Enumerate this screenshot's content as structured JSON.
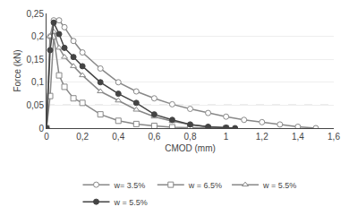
{
  "chart_data": {
    "type": "line",
    "xlabel": "CMOD (mm)",
    "ylabel": "Force (kN)",
    "xlim": [
      0,
      1.6
    ],
    "ylim": [
      0,
      0.25
    ],
    "xticks": [
      0,
      {
        "value": 0.2,
        "label": "0,2"
      },
      {
        "value": 0.4,
        "label": "0,4"
      },
      {
        "value": 0.6,
        "label": "0,6"
      },
      {
        "value": 0.8,
        "label": "0,8"
      },
      1,
      {
        "value": 1.2,
        "label": "1,2"
      },
      {
        "value": 1.4,
        "label": "1,4"
      },
      {
        "value": 1.6,
        "label": "1,6"
      }
    ],
    "yticks": [
      0,
      {
        "value": 0.05,
        "label": "0,05"
      },
      {
        "value": 0.1,
        "label": "0,1"
      },
      {
        "value": 0.15,
        "label": "0,15"
      },
      {
        "value": 0.2,
        "label": "0,2"
      },
      {
        "value": 0.25,
        "label": "0,25"
      }
    ],
    "hline": {
      "value": 0.05,
      "color": "#555555",
      "line_style": "dashed"
    },
    "grid": "y",
    "legend": "bottom",
    "series": [
      {
        "name": "w= 3.5%",
        "marker": "circle-open",
        "color": "#888888",
        "x": [
          0.0,
          0.02,
          0.04,
          0.07,
          0.1,
          0.15,
          0.2,
          0.3,
          0.4,
          0.5,
          0.6,
          0.7,
          0.8,
          0.9,
          1.0,
          1.1,
          1.2,
          1.3,
          1.4,
          1.5
        ],
        "values": [
          0.0,
          0.2,
          0.235,
          0.235,
          0.22,
          0.19,
          0.165,
          0.13,
          0.1,
          0.08,
          0.065,
          0.052,
          0.042,
          0.033,
          0.025,
          0.018,
          0.013,
          0.008,
          0.003,
          0.0
        ]
      },
      {
        "name": "w = 6.5%",
        "marker": "square-open",
        "color": "#888888",
        "x": [
          0.0,
          0.02,
          0.04,
          0.07,
          0.1,
          0.15,
          0.2,
          0.3,
          0.4,
          0.5,
          0.6,
          0.7,
          0.8,
          0.9,
          1.0
        ],
        "values": [
          0.0,
          0.07,
          0.2,
          0.115,
          0.09,
          0.065,
          0.055,
          0.03,
          0.016,
          0.009,
          0.005,
          0.002,
          0.001,
          0.0,
          0.0
        ]
      },
      {
        "name": "w = 5.5%",
        "marker": "triangle-up-open",
        "color": "#888888",
        "x": [
          0.0,
          0.02,
          0.04,
          0.07,
          0.1,
          0.15,
          0.2,
          0.3,
          0.4,
          0.5,
          0.6,
          0.7,
          0.8,
          0.9,
          1.0,
          1.05
        ],
        "values": [
          0.0,
          0.2,
          0.21,
          0.175,
          0.155,
          0.135,
          0.115,
          0.08,
          0.06,
          0.04,
          0.025,
          0.015,
          0.008,
          0.003,
          0.001,
          0.0
        ]
      },
      {
        "name": "w = 5.5%",
        "marker": "circle",
        "color": "#444444",
        "x": [
          0.0,
          0.02,
          0.04,
          0.07,
          0.1,
          0.15,
          0.2,
          0.3,
          0.4,
          0.5,
          0.6,
          0.7,
          0.8,
          0.9,
          1.0,
          1.05
        ],
        "values": [
          0.0,
          0.17,
          0.23,
          0.205,
          0.175,
          0.155,
          0.135,
          0.1,
          0.075,
          0.055,
          0.03,
          0.018,
          0.008,
          0.003,
          0.001,
          0.0
        ]
      }
    ]
  }
}
